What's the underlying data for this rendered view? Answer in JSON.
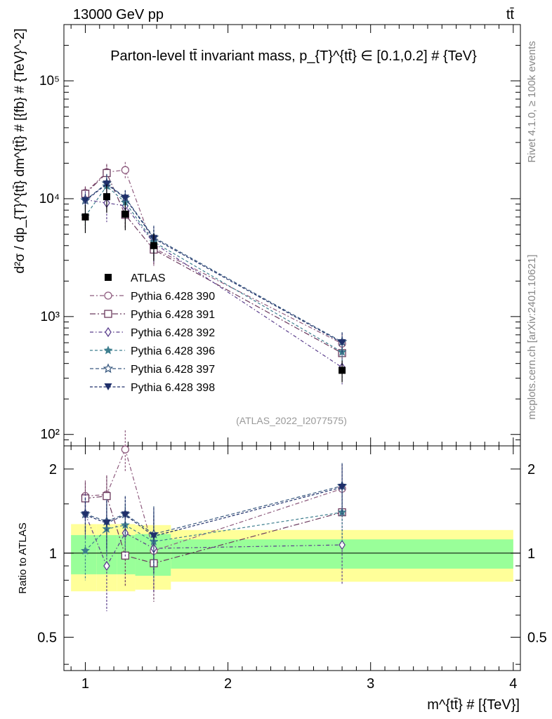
{
  "header": {
    "energy_label": "13000 GeV pp",
    "process_label": "tt̄"
  },
  "side_labels": {
    "rivet": "Rivet 4.1.0, ≥ 100k events",
    "mcplots": "mcplots.cern.ch [arXiv:2401.10621]"
  },
  "chart_data": {
    "type": "line",
    "title": "Parton-level tt̄ invariant mass, p_{T}^{tt̄} ∈ [0.1,0.2] # {TeV}",
    "analysis_id": "(ATLAS_2022_I2077575)",
    "xlabel": "m^{tt̄} # [{TeV}]",
    "ylabel": "d²σ / dp_{T}^{tt̄} dm^{tt̄} # [{fb} # {TeV}^-2]",
    "ratio_ylabel": "Ratio to ATLAS",
    "xlim": [
      0.85,
      4.05
    ],
    "ylim": [
      80,
      300000
    ],
    "ratio_ylim": [
      0.38,
      2.42
    ],
    "x_ticks": [
      1,
      2,
      3,
      4
    ],
    "y_ticks": [
      100,
      1000,
      10000,
      100000
    ],
    "y_tick_labels": [
      "10²",
      "10³",
      "10⁴",
      "10⁵"
    ],
    "ratio_ticks": [
      0.5,
      1,
      2
    ],
    "ratio_tick_labels": [
      "0.5",
      "1",
      "2"
    ],
    "x": [
      1.0,
      1.15,
      1.28,
      1.48,
      2.8
    ],
    "bins": [
      [
        0.9,
        1.08
      ],
      [
        1.08,
        1.22
      ],
      [
        1.22,
        1.35
      ],
      [
        1.35,
        1.6
      ],
      [
        1.6,
        4.0
      ]
    ],
    "data": {
      "name": "ATLAS",
      "values": [
        7000,
        10400,
        7400,
        4000,
        350
      ],
      "band_inner": [
        0.16,
        0.16,
        0.16,
        0.17,
        0.12
      ],
      "band_outer": [
        0.27,
        0.27,
        0.27,
        0.26,
        0.21
      ]
    },
    "series": [
      {
        "name": "Pythia 6.428 390",
        "color": "#8e5b7e",
        "marker": "circle-open",
        "dash": "6,3,2,3",
        "values": [
          11200,
          16800,
          17500,
          3800,
          590
        ],
        "ratio": [
          1.6,
          1.62,
          2.35,
          1.02,
          1.7
        ],
        "ratio_err": [
          0.22,
          0.28,
          0.4,
          0.3,
          0.35
        ]
      },
      {
        "name": "Pythia 6.428 391",
        "color": "#6b3a5e",
        "marker": "square-open",
        "dash": "8,3,2,3",
        "values": [
          11000,
          16500,
          7300,
          3700,
          490
        ],
        "ratio": [
          1.57,
          1.6,
          0.98,
          0.92,
          1.4
        ],
        "ratio_err": [
          0.22,
          0.28,
          0.22,
          0.25,
          0.32
        ]
      },
      {
        "name": "Pythia 6.428 392",
        "color": "#5a3e8c",
        "marker": "diamond-open",
        "dash": "5,3,1.5,3",
        "values": [
          9800,
          9200,
          8700,
          4200,
          370
        ],
        "ratio": [
          1.38,
          0.9,
          1.18,
          1.04,
          1.07
        ],
        "ratio_err": [
          0.25,
          0.28,
          0.22,
          0.32,
          0.3
        ]
      },
      {
        "name": "Pythia 6.428 396",
        "color": "#3f7f8f",
        "marker": "star-filled",
        "dash": "4,3",
        "values": [
          7100,
          12800,
          9300,
          4300,
          500
        ],
        "ratio": [
          1.02,
          1.22,
          1.26,
          1.1,
          1.4
        ],
        "ratio_err": [
          0.22,
          0.25,
          0.22,
          0.3,
          0.32
        ]
      },
      {
        "name": "Pythia 6.428 397",
        "color": "#3a5a80",
        "marker": "star-open",
        "dash": "5,3",
        "values": [
          9700,
          13500,
          10200,
          4700,
          610
        ],
        "ratio": [
          1.38,
          1.3,
          1.38,
          1.17,
          1.74
        ],
        "ratio_err": [
          0.2,
          0.26,
          0.22,
          0.3,
          0.36
        ]
      },
      {
        "name": "Pythia 6.428 398",
        "color": "#1f2f6a",
        "marker": "triangle-down-filled",
        "dash": "4,2.5",
        "values": [
          9600,
          13300,
          10100,
          4600,
          600
        ],
        "ratio": [
          1.37,
          1.28,
          1.37,
          1.15,
          1.72
        ],
        "ratio_err": [
          0.2,
          0.26,
          0.22,
          0.3,
          0.36
        ]
      }
    ]
  }
}
